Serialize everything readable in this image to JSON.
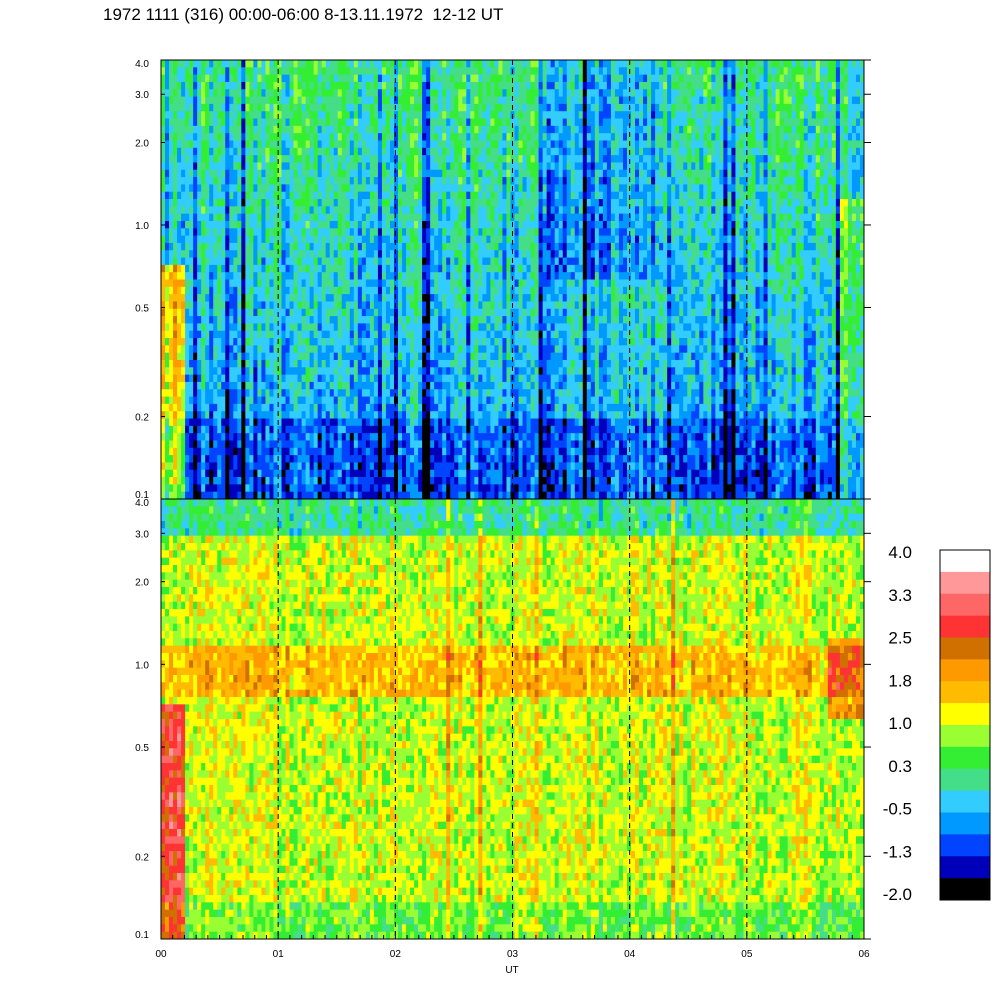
{
  "title": "1972 1111 (316) 00:00-06:00 8-13.11.1972  12-12 UT",
  "chart_data": {
    "type": "heatmap",
    "title": "1972 1111 (316) 00:00-06:00 8-13.11.1972  12-12 UT",
    "xlabel": "UT",
    "ylabel": "",
    "x_ticks": [
      "00",
      "01",
      "02",
      "03",
      "04",
      "05",
      "06"
    ],
    "xlim": [
      0,
      6
    ],
    "y_scale": "log",
    "panels": [
      {
        "name": "upper",
        "ylim": [
          0.1,
          4.0
        ],
        "y_ticks": [
          {
            "value": 0.1,
            "label": "0.1"
          },
          {
            "value": 0.2,
            "label": "0.2"
          },
          {
            "value": 0.5,
            "label": "0.5"
          },
          {
            "value": 1.0,
            "label": "1.0"
          },
          {
            "value": 2.0,
            "label": "2.0"
          },
          {
            "value": 3.0,
            "label": "3.0"
          },
          {
            "value": 4.0,
            "label": "4.0"
          }
        ],
        "dashed_lines_at_hours": [
          1,
          2,
          3,
          4,
          5
        ],
        "dominant_level": "low (-1.0 to 0.6)"
      },
      {
        "name": "lower",
        "ylim": [
          0.1,
          4.0
        ],
        "y_ticks": [
          {
            "value": 0.1,
            "label": "0.1"
          },
          {
            "value": 0.2,
            "label": "0.2"
          },
          {
            "value": 0.5,
            "label": "0.5"
          },
          {
            "value": 1.0,
            "label": "1.0"
          },
          {
            "value": 2.0,
            "label": "2.0"
          },
          {
            "value": 3.0,
            "label": "3.0"
          },
          {
            "value": 4.0,
            "label": "4.0"
          }
        ],
        "dashed_lines_at_hours": [
          1,
          2,
          3,
          4,
          5
        ],
        "dominant_level": "high (0.8 to 2.0)"
      }
    ],
    "colorbar": {
      "labels": [
        "4.0",
        "3.3",
        "2.5",
        "1.8",
        "1.0",
        "0.3",
        "-0.5",
        "-1.3",
        "-2.0"
      ],
      "range": [
        -2.0,
        4.0
      ],
      "colors": [
        "#ffffff",
        "#ff9999",
        "#ff6666",
        "#ff3333",
        "#d07000",
        "#ff9900",
        "#ffbb00",
        "#ffff00",
        "#99ff33",
        "#33ee33",
        "#44dd88",
        "#33ccff",
        "#0099ff",
        "#0044ff",
        "#0000bb",
        "#000000"
      ]
    }
  }
}
